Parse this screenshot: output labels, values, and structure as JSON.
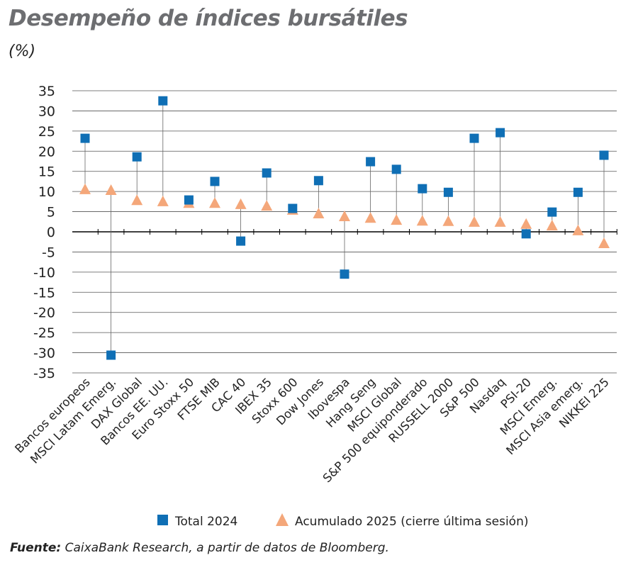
{
  "title": "Desempeño de índices bursátiles",
  "subtitle": "(%)",
  "source_label": "Fuente:",
  "source_text": " CaixaBank Research, a partir de datos de Bloomberg.",
  "chart_data": {
    "type": "scatter",
    "title": "Desempeño de índices bursátiles",
    "ylabel": "(%)",
    "ylim": [
      -35,
      35
    ],
    "yticks": [
      35,
      30,
      25,
      20,
      15,
      10,
      5,
      0,
      -5,
      -10,
      -15,
      -20,
      -25,
      -30,
      -35
    ],
    "grid": true,
    "legend_position": "bottom",
    "categories": [
      "Bancos europeos",
      "MSCI Latam Emerg.",
      "DAX Global",
      "Bancos EE. UU.",
      "Euro Stoxx 50",
      "FTSE MIB",
      "CAC 40",
      "IBEX 35",
      "Stoxx 600",
      "Dow Jones",
      "Ibovespa",
      "Hang Seng",
      "MSCI Global",
      "S&P 500 equiponderado",
      "RUSSELL 2000",
      "S&P 500",
      "Nasdaq",
      "PSI-20",
      "MSCI Emerg.",
      "MSCI Asia emerg.",
      "NIKKEI 225"
    ],
    "series": [
      {
        "name": "Total 2024",
        "marker": "square",
        "color": "#0f6fb5",
        "values": [
          23.2,
          -30.6,
          18.6,
          32.5,
          7.9,
          12.5,
          -2.3,
          14.6,
          5.8,
          12.7,
          -10.5,
          17.4,
          15.5,
          10.7,
          9.8,
          23.2,
          24.6,
          -0.5,
          4.9,
          9.8,
          19.0
        ]
      },
      {
        "name": "Acumulado 2025 (cierre última sesión)",
        "marker": "triangle",
        "color": "#f4a77a",
        "values": [
          10.4,
          10.2,
          7.7,
          7.4,
          7.0,
          7.0,
          6.7,
          6.3,
          5.3,
          4.4,
          3.7,
          3.3,
          2.8,
          2.6,
          2.5,
          2.3,
          2.3,
          1.8,
          1.4,
          0.2,
          -3.0
        ]
      }
    ]
  }
}
